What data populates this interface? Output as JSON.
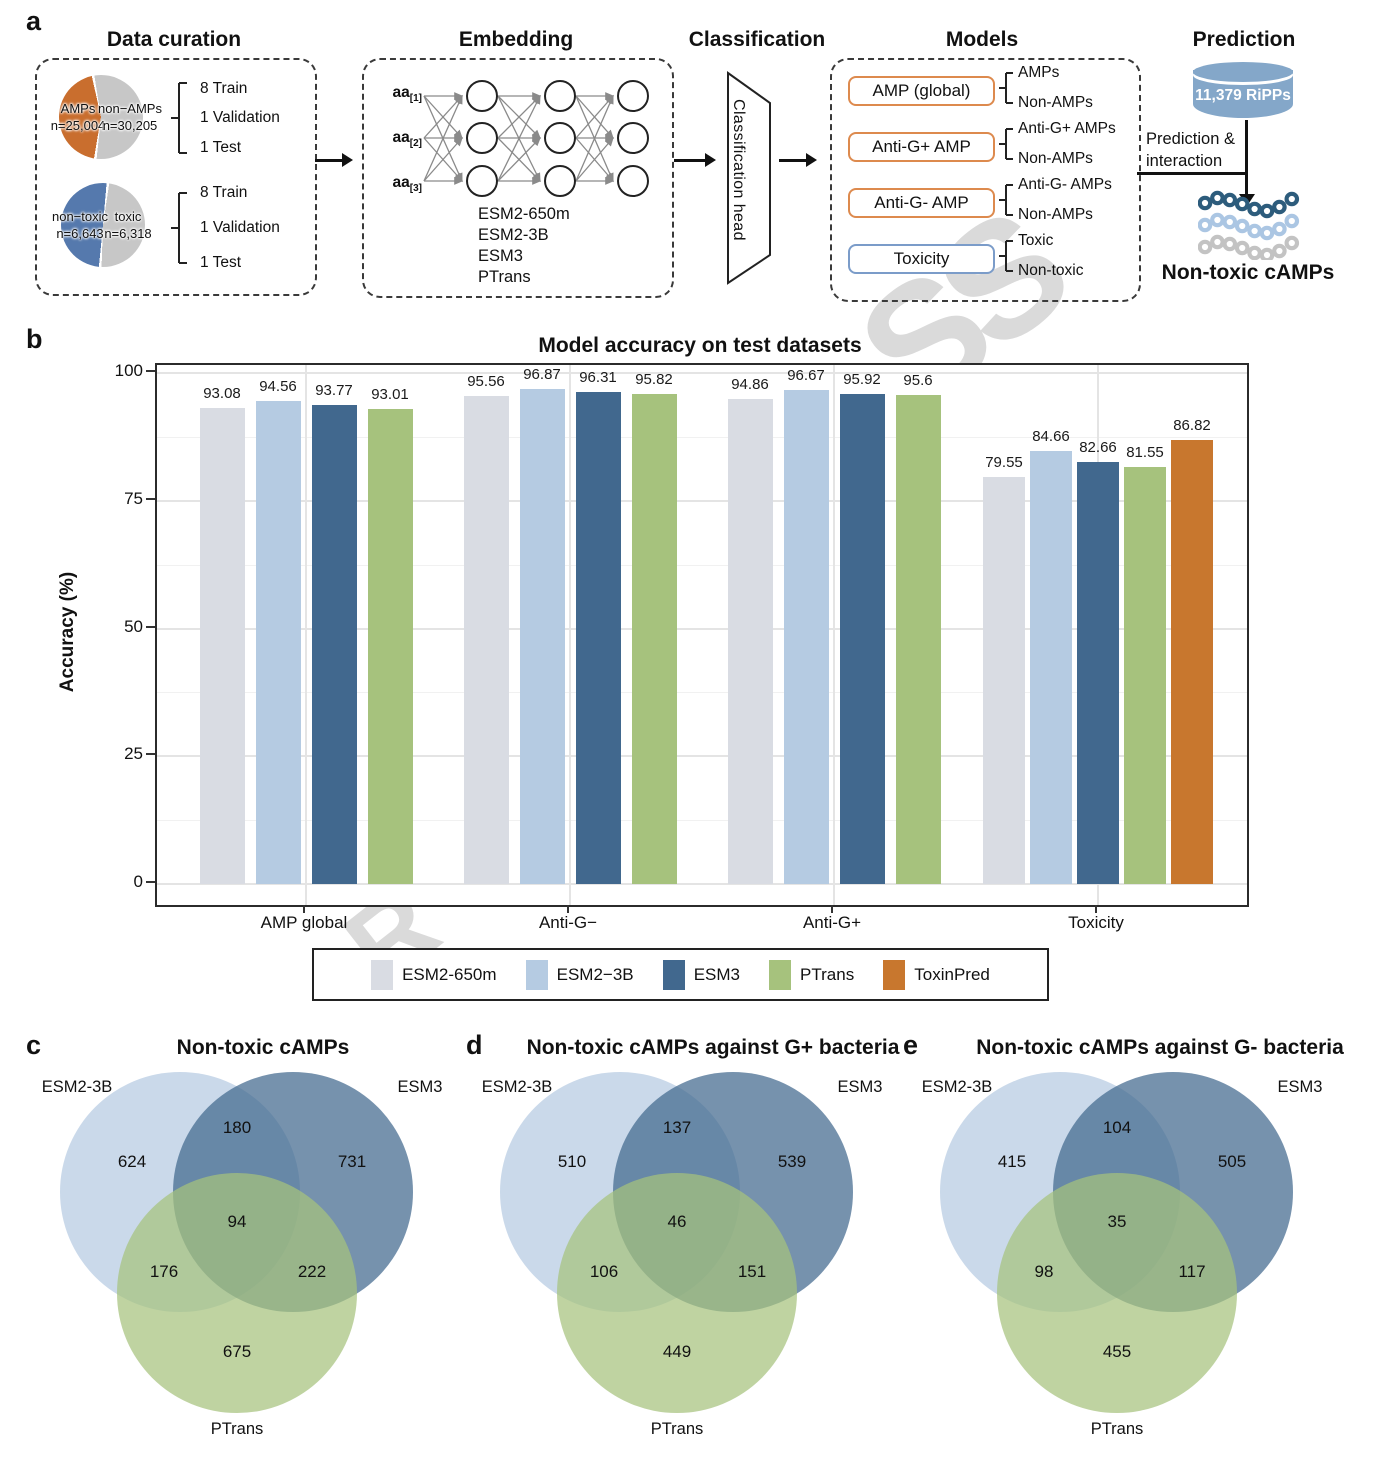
{
  "panels": {
    "a": "a",
    "b": "b",
    "c": "c",
    "d": "d",
    "e": "e"
  },
  "watermark": {
    "fragment_1": "SS",
    "fragment_2": "R"
  },
  "workflow": {
    "headings": {
      "data_curation": "Data curation",
      "embedding": "Embedding",
      "classification": "Classification",
      "models": "Models",
      "prediction": "Prediction"
    },
    "pies": [
      {
        "left_label": "AMPs",
        "left_n": "n=25,004",
        "right_label": "non−AMPs",
        "right_n": "n=30,205"
      },
      {
        "left_label": "non−toxic",
        "left_n": "n=6,643",
        "right_label": "toxic",
        "right_n": "n=6,318"
      }
    ],
    "split_items": [
      "8 Train",
      "1 Validation",
      "1 Test"
    ],
    "nn_inputs": [
      {
        "base": "aa",
        "sub": "[1]"
      },
      {
        "base": "aa",
        "sub": "[2]"
      },
      {
        "base": "aa",
        "sub": "[3]"
      }
    ],
    "embedding_models_text": "ESM2-650m\nESM2-3B\nESM3\nPTrans",
    "classification_head": "Classification head",
    "models": [
      {
        "label": "AMP (global)",
        "outputs": [
          "AMPs",
          "Non-AMPs"
        ]
      },
      {
        "label": "Anti-G+ AMP",
        "outputs": [
          "Anti-G+ AMPs",
          "Non-AMPs"
        ]
      },
      {
        "label": "Anti-G- AMP",
        "outputs": [
          "Anti-G- AMPs",
          "Non-AMPs"
        ]
      },
      {
        "label": "Toxicity",
        "outputs": [
          "Toxic",
          "Non-toxic"
        ]
      }
    ],
    "prediction": {
      "database_label": "11,379 RiPPs",
      "flow_line1": "Prediction &",
      "flow_line2": "interaction",
      "result_label": "Non-toxic cAMPs",
      "chain_colors": [
        "#2d5c7c",
        "#abc6e3",
        "#c3c3c3"
      ]
    }
  },
  "colors": {
    "pie_orange": "#c96e2e",
    "pie_blue": "#5579ad",
    "pie_gray": "#c7c7c7",
    "chip_border_orange": "#dd8a4e",
    "chip_border_blue": "#7b9cc9",
    "database_blue": "#84a7c9"
  },
  "chart_data": [
    {
      "type": "bar",
      "title": "Model accuracy on test datasets",
      "ylabel": "Accuracy (%)",
      "ylim": [
        0,
        100
      ],
      "yticks": [
        0,
        25,
        50,
        75,
        100
      ],
      "grid": true,
      "legend_position": "bottom",
      "categories": [
        "AMP global",
        "Anti-G−",
        "Anti-G+",
        "Toxicity"
      ],
      "series": [
        {
          "name": "ESM2-650m",
          "color": "#d9dce3",
          "values": [
            93.08,
            95.56,
            94.86,
            79.55
          ]
        },
        {
          "name": "ESM2−3B",
          "color": "#b5cbe2",
          "values": [
            94.56,
            96.87,
            96.67,
            84.66
          ]
        },
        {
          "name": "ESM3",
          "color": "#41688e",
          "values": [
            93.77,
            96.31,
            95.92,
            82.66
          ]
        },
        {
          "name": "PTrans",
          "color": "#a6c27d",
          "values": [
            93.01,
            95.82,
            95.6,
            81.55
          ]
        },
        {
          "name": "ToxinPred",
          "color": "#c8772e",
          "values": [
            null,
            null,
            null,
            86.82
          ]
        }
      ]
    },
    {
      "type": "venn",
      "title": "Non-toxic cAMPs",
      "sets": [
        "ESM2-3B",
        "ESM3",
        "PTrans"
      ],
      "regions": {
        "only_esm2_3b": 624,
        "esm2_3b_and_esm3": 180,
        "only_esm3": 731,
        "esm2_3b_and_ptrans": 176,
        "all_three": 94,
        "esm3_and_ptrans": 222,
        "only_ptrans": 675
      }
    },
    {
      "type": "venn",
      "title": "Non-toxic cAMPs against G+ bacteria",
      "sets": [
        "ESM2-3B",
        "ESM3",
        "PTrans"
      ],
      "regions": {
        "only_esm2_3b": 510,
        "esm2_3b_and_esm3": 137,
        "only_esm3": 539,
        "esm2_3b_and_ptrans": 106,
        "all_three": 46,
        "esm3_and_ptrans": 151,
        "only_ptrans": 449
      }
    },
    {
      "type": "venn",
      "title": "Non-toxic cAMPs against G- bacteria",
      "sets": [
        "ESM2-3B",
        "ESM3",
        "PTrans"
      ],
      "regions": {
        "only_esm2_3b": 415,
        "esm2_3b_and_esm3": 104,
        "only_esm3": 505,
        "esm2_3b_and_ptrans": 98,
        "all_three": 35,
        "esm3_and_ptrans": 117,
        "only_ptrans": 455
      }
    }
  ]
}
